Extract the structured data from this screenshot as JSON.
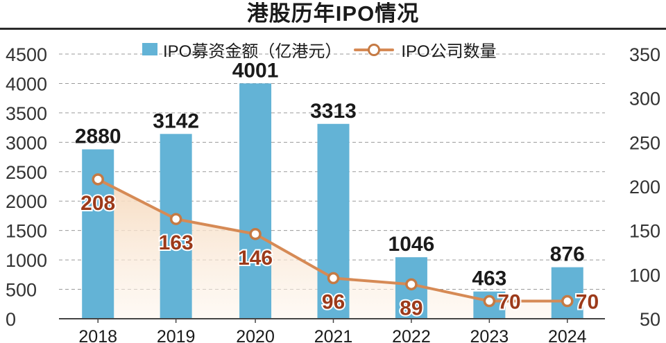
{
  "chart_data": {
    "type": "bar",
    "title": "港股历年IPO情况",
    "categories": [
      "2018",
      "2019",
      "2020",
      "2021",
      "2022",
      "2023",
      "2024"
    ],
    "series": [
      {
        "name": "IPO募资金额（亿港元）",
        "type": "bar",
        "axis": "left",
        "values": [
          2880,
          3142,
          4001,
          3313,
          1046,
          463,
          876
        ],
        "color": "#63b3d6"
      },
      {
        "name": "IPO公司数量",
        "type": "line",
        "axis": "right",
        "values": [
          208,
          163,
          146,
          96,
          89,
          70,
          70
        ],
        "color": "#d68a55",
        "label_color": "#9c3a1a"
      }
    ],
    "y_left": {
      "ylim": [
        0,
        4500
      ],
      "ticks": [
        "0",
        "500",
        "1000",
        "1500",
        "2000",
        "2500",
        "3000",
        "3500",
        "4000",
        "4500"
      ]
    },
    "y_right": {
      "ylim": [
        50,
        350
      ],
      "ticks": [
        "50",
        "100",
        "150",
        "200",
        "250",
        "300",
        "350"
      ]
    },
    "grid": "horizontal-dashed",
    "legend": "top"
  }
}
